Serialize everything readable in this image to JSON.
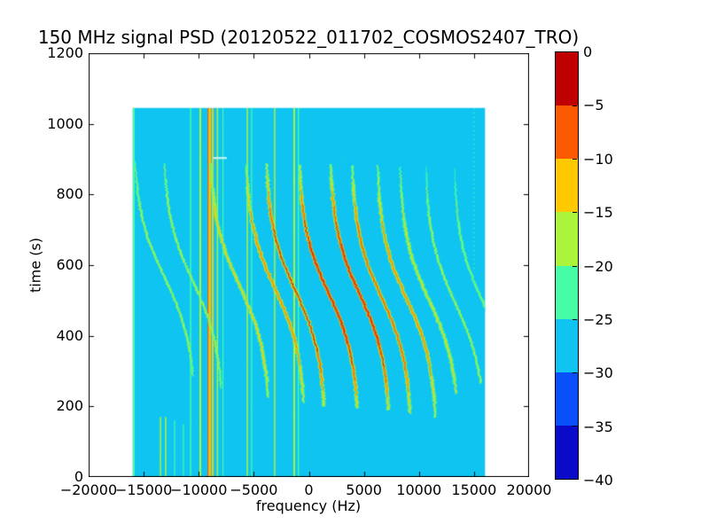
{
  "chart_data": {
    "type": "heatmap",
    "title": "150 MHz signal PSD (20120522_011702_COSMOS2407_TRO)",
    "xlabel": "frequency (Hz)",
    "ylabel": "time (s)",
    "xlim": [
      -20000,
      20000
    ],
    "ylim": [
      0,
      1200
    ],
    "xticks": [
      -20000,
      -15000,
      -10000,
      -5000,
      0,
      5000,
      10000,
      15000,
      20000
    ],
    "yticks": [
      0,
      200,
      400,
      600,
      800,
      1000,
      1200
    ],
    "grid": false,
    "data_extent": {
      "freq_min": -16000,
      "freq_max": 16000,
      "time_min": 0,
      "time_max": 1045
    },
    "background_db": -27,
    "colors": {
      "figure_bg": "#ffffff",
      "frame": "#000000",
      "text": "#000000"
    },
    "colorbar": {
      "ticks": [
        0,
        -5,
        -10,
        -15,
        -20,
        -25,
        -30,
        -35,
        -40
      ],
      "segment_colors": [
        "#c00000",
        "#fc5a02",
        "#ffc801",
        "#aaf43c",
        "#46fca5",
        "#0fc4f0",
        "#0a50fa",
        "#0a0ac8"
      ]
    },
    "trace_defaults": {
      "amp_hz": 2750,
      "tau_s": 190,
      "fade_halfwidth_s": 380
    },
    "doppler_traces": [
      {
        "fc": -13100,
        "amp_hz": 2850,
        "tmid": 565,
        "t_top": 895,
        "t_bot": 285,
        "peak_db": -16
      },
      {
        "fc": -10500,
        "tmid": 552,
        "t_top": 888,
        "t_bot": 250,
        "peak_db": -15
      },
      {
        "fc": -6270,
        "tmid": 540,
        "t_top": 890,
        "t_bot": 225,
        "peak_db": -10
      },
      {
        "fc": -3050,
        "tmid": 532,
        "t_top": 886,
        "t_bot": 210,
        "peak_db": -8
      },
      {
        "fc": -1200,
        "tmid": 526,
        "t_top": 888,
        "t_bot": 200,
        "peak_db": -4
      },
      {
        "fc": 1800,
        "tmid": 520,
        "t_top": 884,
        "t_bot": 195,
        "peak_db": -3
      },
      {
        "fc": 4650,
        "tmid": 515,
        "t_top": 886,
        "t_bot": 190,
        "peak_db": -3
      },
      {
        "fc": 6600,
        "tmid": 509,
        "t_top": 882,
        "t_bot": 180,
        "peak_db": -5
      },
      {
        "fc": 8900,
        "tmid": 503,
        "t_top": 884,
        "t_bot": 168,
        "peak_db": -8
      },
      {
        "fc": 10950,
        "tmid": 498,
        "t_top": 878,
        "t_bot": 235,
        "peak_db": -12
      },
      {
        "fc": 13300,
        "tmid": 493,
        "t_top": 880,
        "t_bot": 265,
        "peak_db": -15
      },
      {
        "fc": 15900,
        "tmid": 488,
        "t_top": 875,
        "t_bot": 430,
        "peak_db": -17
      }
    ],
    "rfi_lines": [
      {
        "freq": -15890,
        "t0": 0,
        "t1": 1045,
        "level_db": -20,
        "width": 2
      },
      {
        "freq": -10740,
        "t0": 0,
        "t1": 1045,
        "level_db": -21,
        "width": 1.5
      },
      {
        "freq": -9860,
        "t0": 0,
        "t1": 1045,
        "level_db": -17,
        "width": 2
      },
      {
        "freq": -9150,
        "t0": 0,
        "t1": 1045,
        "level_db": -9,
        "width": 1.4
      },
      {
        "freq": -9000,
        "t0": 0,
        "t1": 1045,
        "level_db": -14,
        "width": 2.4
      },
      {
        "freq": -8730,
        "t0": 0,
        "t1": 1045,
        "level_db": -12,
        "width": 2
      },
      {
        "freq": -8300,
        "t0": 0,
        "t1": 1045,
        "level_db": -17,
        "width": 1.5
      },
      {
        "freq": -7800,
        "t0": 0,
        "t1": 1045,
        "level_db": -21,
        "width": 1.2
      },
      {
        "freq": -5590,
        "t0": 0,
        "t1": 1045,
        "level_db": -19,
        "width": 1.5
      },
      {
        "freq": -5200,
        "t0": 0,
        "t1": 1045,
        "level_db": -21,
        "width": 1.2
      },
      {
        "freq": -3100,
        "t0": 0,
        "t1": 1045,
        "level_db": -19,
        "width": 1.5
      },
      {
        "freq": -1330,
        "t0": 0,
        "t1": 1045,
        "level_db": -18,
        "width": 2
      },
      {
        "freq": -950,
        "t0": 0,
        "t1": 1045,
        "level_db": -20,
        "width": 1.4
      },
      {
        "freq": 15000,
        "t0": 580,
        "t1": 1045,
        "level_db": -23,
        "width": 1.2,
        "dashed": true
      },
      {
        "freq": -13475,
        "t0": 0,
        "t1": 170,
        "level_db": -19,
        "width": 1.5
      },
      {
        "freq": -13000,
        "t0": 0,
        "t1": 170,
        "level_db": -16,
        "width": 1.5
      },
      {
        "freq": -12190,
        "t0": 0,
        "t1": 160,
        "level_db": -20,
        "width": 1.2
      },
      {
        "freq": -11390,
        "t0": 0,
        "t1": 150,
        "level_db": -21,
        "width": 1.2
      }
    ],
    "artifact_dash": {
      "freq0": -8700,
      "freq1": -7450,
      "t": 903,
      "color": "#d8f4fb"
    }
  }
}
